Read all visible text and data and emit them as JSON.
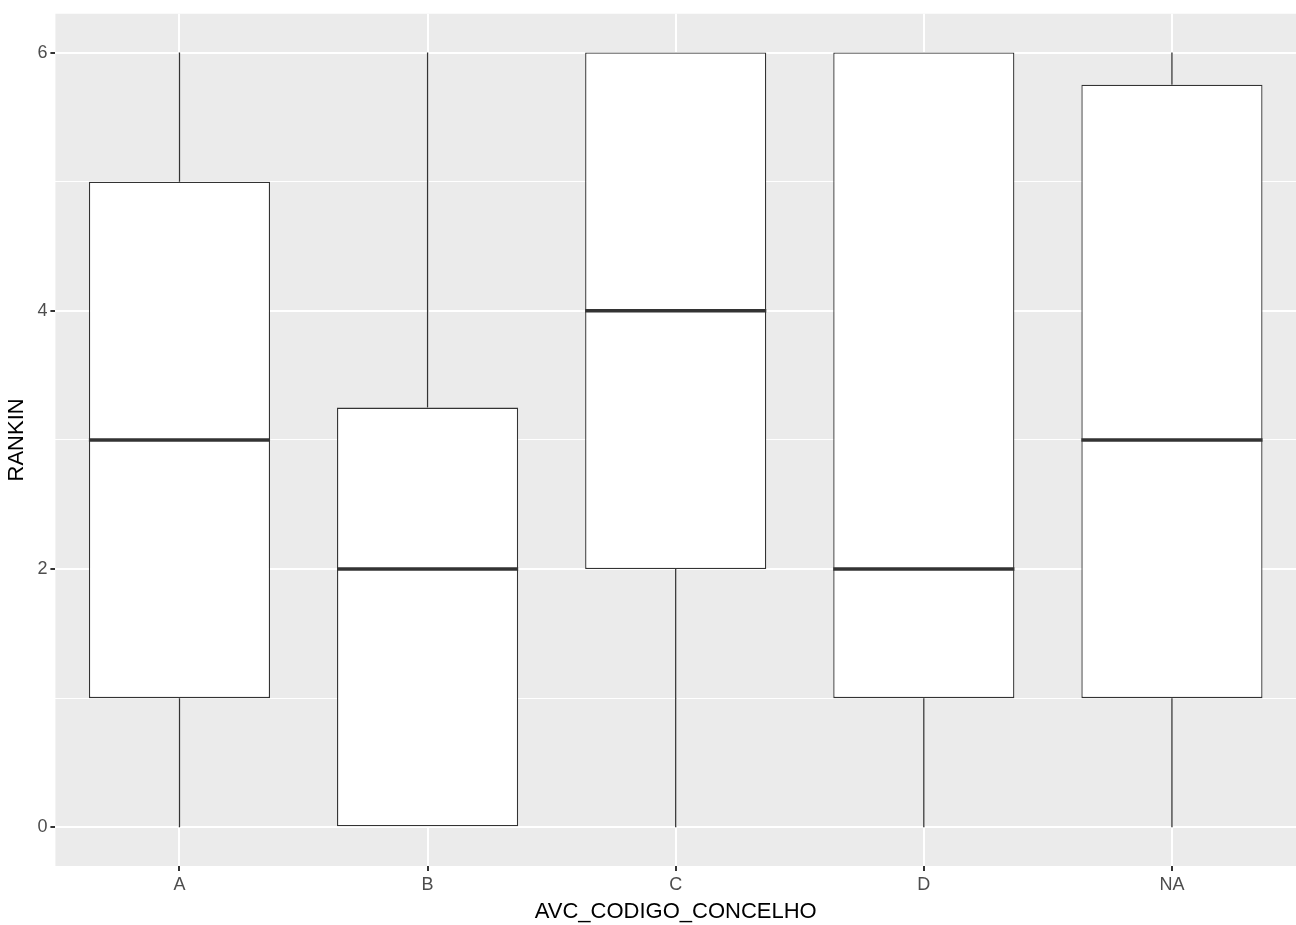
{
  "chart_data": {
    "type": "box",
    "xlabel": "AVC_CODIGO_CONCELHO",
    "ylabel": "RANKIN",
    "categories": [
      "A",
      "B",
      "C",
      "D",
      "NA"
    ],
    "boxes": [
      {
        "low": 0,
        "q1": 1,
        "median": 3,
        "q3": 5,
        "high": 6
      },
      {
        "low": 0,
        "q1": 0,
        "median": 2,
        "q3": 3.25,
        "high": 6
      },
      {
        "low": 0,
        "q1": 2,
        "median": 4,
        "q3": 6,
        "high": 6
      },
      {
        "low": 0,
        "q1": 1,
        "median": 2,
        "q3": 6,
        "high": 6
      },
      {
        "low": 0,
        "q1": 1,
        "median": 3,
        "q3": 5.75,
        "high": 6
      }
    ],
    "color": "#333333",
    "ylim": [
      -0.3,
      6.3
    ],
    "yticks": [
      0,
      {
        "value": 1,
        "label": null
      },
      2,
      {
        "value": 3,
        "label": null
      },
      4,
      {
        "value": 5,
        "label": null
      },
      6
    ],
    "grid": true
  }
}
